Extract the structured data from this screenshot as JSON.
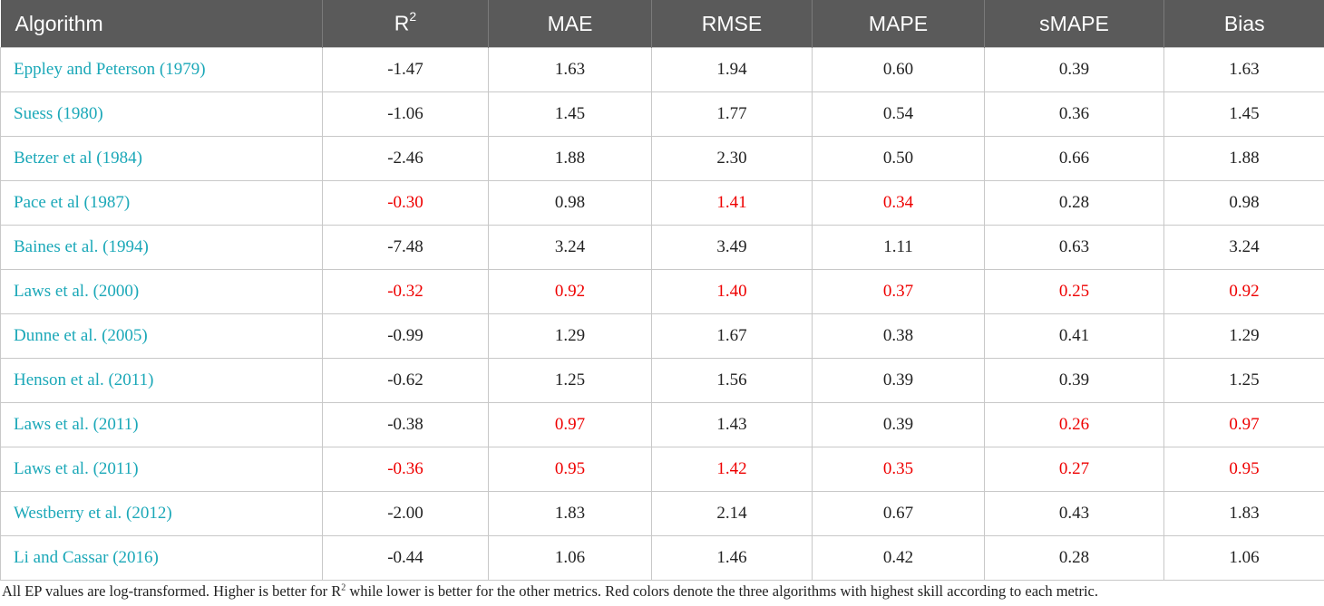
{
  "table": {
    "headers": {
      "algorithm": "Algorithm",
      "r2_base": "R",
      "r2_sup": "2",
      "mae": "MAE",
      "rmse": "RMSE",
      "mape": "MAPE",
      "smape": "sMAPE",
      "bias": "Bias"
    },
    "rows": [
      {
        "algorithm": "Eppley and Peterson (1979)",
        "r2": "-1.47",
        "mae": "1.63",
        "rmse": "1.94",
        "mape": "0.60",
        "smape": "0.39",
        "bias": "1.63",
        "highlight": []
      },
      {
        "algorithm": "Suess (1980)",
        "r2": "-1.06",
        "mae": "1.45",
        "rmse": "1.77",
        "mape": "0.54",
        "smape": "0.36",
        "bias": "1.45",
        "highlight": []
      },
      {
        "algorithm": "Betzer et al (1984)",
        "r2": "-2.46",
        "mae": "1.88",
        "rmse": "2.30",
        "mape": "0.50",
        "smape": "0.66",
        "bias": "1.88",
        "highlight": []
      },
      {
        "algorithm": "Pace et al (1987)",
        "r2": "-0.30",
        "mae": "0.98",
        "rmse": "1.41",
        "mape": "0.34",
        "smape": "0.28",
        "bias": "0.98",
        "highlight": [
          "r2",
          "rmse",
          "mape"
        ]
      },
      {
        "algorithm": "Baines et al. (1994)",
        "r2": "-7.48",
        "mae": "3.24",
        "rmse": "3.49",
        "mape": "1.11",
        "smape": "0.63",
        "bias": "3.24",
        "highlight": []
      },
      {
        "algorithm": "Laws et al. (2000)",
        "r2": "-0.32",
        "mae": "0.92",
        "rmse": "1.40",
        "mape": "0.37",
        "smape": "0.25",
        "bias": "0.92",
        "highlight": [
          "r2",
          "mae",
          "rmse",
          "mape",
          "smape",
          "bias"
        ]
      },
      {
        "algorithm": "Dunne et al. (2005)",
        "r2": "-0.99",
        "mae": "1.29",
        "rmse": "1.67",
        "mape": "0.38",
        "smape": "0.41",
        "bias": "1.29",
        "highlight": []
      },
      {
        "algorithm": "Henson et al. (2011)",
        "r2": "-0.62",
        "mae": "1.25",
        "rmse": "1.56",
        "mape": "0.39",
        "smape": "0.39",
        "bias": "1.25",
        "highlight": []
      },
      {
        "algorithm": "Laws et al. (2011)",
        "r2": "-0.38",
        "mae": "0.97",
        "rmse": "1.43",
        "mape": "0.39",
        "smape": "0.26",
        "bias": "0.97",
        "highlight": [
          "mae",
          "smape",
          "bias"
        ]
      },
      {
        "algorithm": "Laws et al. (2011)",
        "r2": "-0.36",
        "mae": "0.95",
        "rmse": "1.42",
        "mape": "0.35",
        "smape": "0.27",
        "bias": "0.95",
        "highlight": [
          "r2",
          "mae",
          "rmse",
          "mape",
          "smape",
          "bias"
        ]
      },
      {
        "algorithm": "Westberry et al. (2012)",
        "r2": "-2.00",
        "mae": "1.83",
        "rmse": "2.14",
        "mape": "0.67",
        "smape": "0.43",
        "bias": "1.83",
        "highlight": []
      },
      {
        "algorithm": "Li and Cassar (2016)",
        "r2": "-0.44",
        "mae": "1.06",
        "rmse": "1.46",
        "mape": "0.42",
        "smape": "0.28",
        "bias": "1.06",
        "highlight": []
      }
    ]
  },
  "caption": {
    "part1": "All EP values are log-transformed. Higher is better for R",
    "sup": "2",
    "part2": " while lower is better for the other metrics. Red colors denote the three algorithms with highest skill according to each metric."
  },
  "colors": {
    "header_bg": "#5a5a5a",
    "algorithm_link": "#1ba8b8",
    "best_value": "#ee0000"
  }
}
